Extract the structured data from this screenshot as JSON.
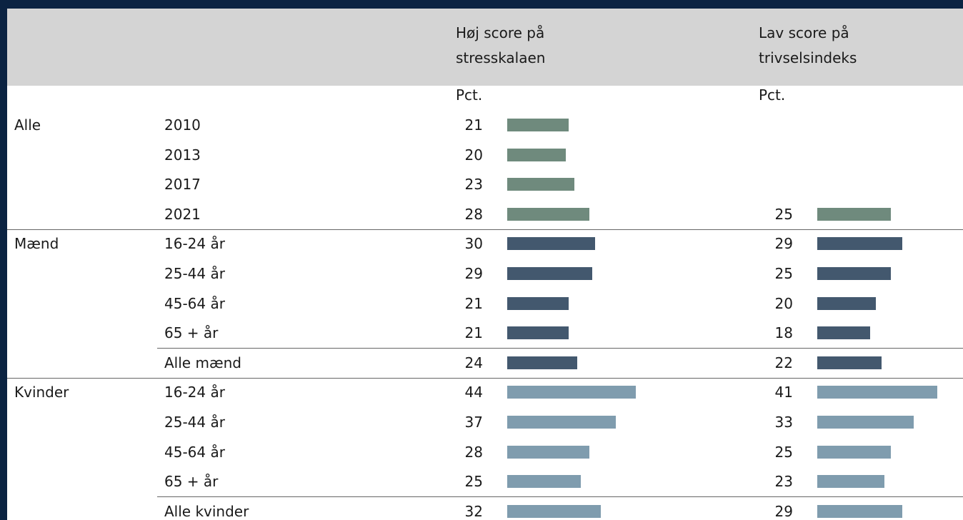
{
  "header": {
    "stress": [
      "Høj score på",
      "stresskalaen"
    ],
    "trivsel": [
      "Lav score på",
      "trivselsindeks"
    ]
  },
  "units": {
    "stress": "Pct.",
    "trivsel": "Pct."
  },
  "groups": [
    {
      "name": "Alle",
      "color": "#6f8a7d",
      "rows": [
        {
          "label": "2010",
          "stress": 21
        },
        {
          "label": "2013",
          "stress": 20
        },
        {
          "label": "2017",
          "stress": 23
        },
        {
          "label": "2021",
          "stress": 28,
          "trivsel": 25
        }
      ]
    },
    {
      "name": "Mænd",
      "color": "#43586e",
      "rows": [
        {
          "label": "16-24 år",
          "stress": 30,
          "trivsel": 29
        },
        {
          "label": "25-44 år",
          "stress": 29,
          "trivsel": 25
        },
        {
          "label": "45-64 år",
          "stress": 21,
          "trivsel": 20
        },
        {
          "label": "65 + år",
          "stress": 21,
          "trivsel": 18
        },
        {
          "label": "Alle mænd",
          "stress": 24,
          "trivsel": 22
        }
      ]
    },
    {
      "name": "Kvinder",
      "color": "#7f9cae",
      "rows": [
        {
          "label": "16-24 år",
          "stress": 44,
          "trivsel": 41
        },
        {
          "label": "25-44 år",
          "stress": 37,
          "trivsel": 33
        },
        {
          "label": "45-64 år",
          "stress": 28,
          "trivsel": 25
        },
        {
          "label": "65 + år",
          "stress": 25,
          "trivsel": 23
        },
        {
          "label": "Alle kvinder",
          "stress": 32,
          "trivsel": 29
        }
      ]
    }
  ]
}
